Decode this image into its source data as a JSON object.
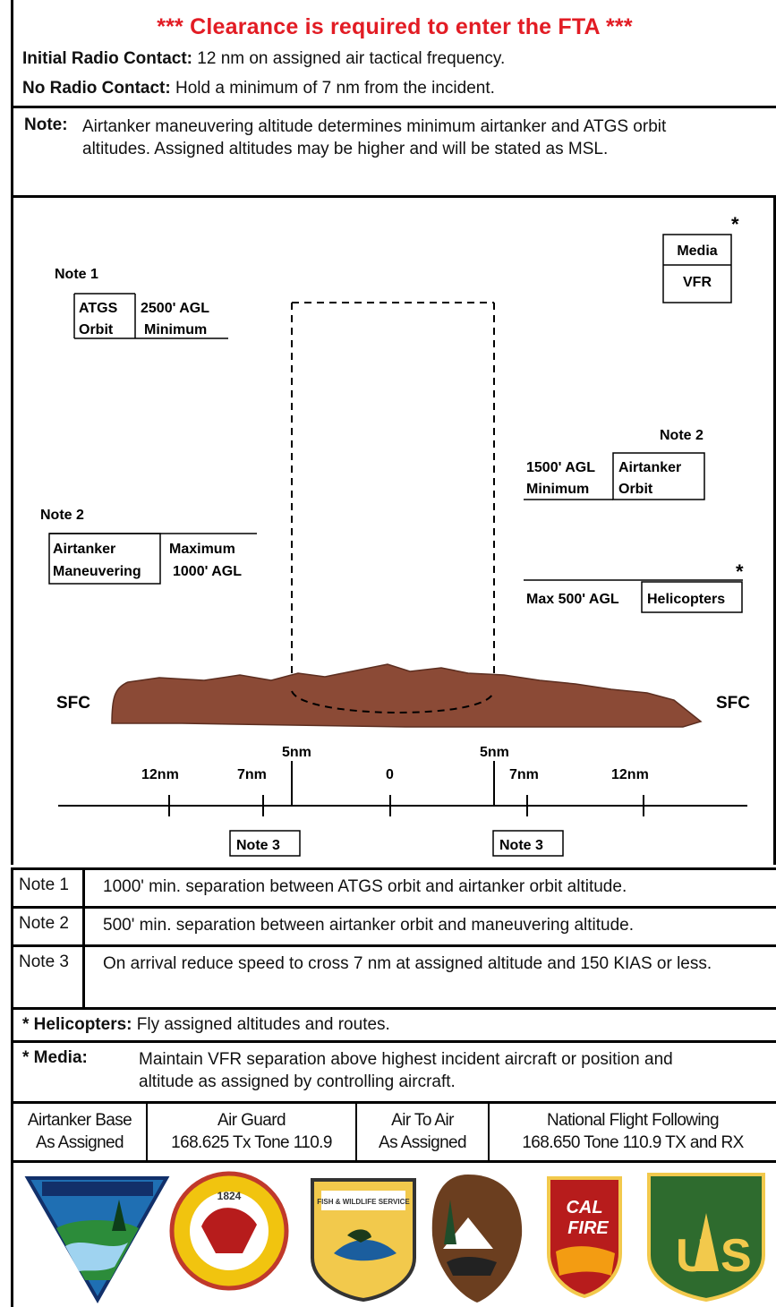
{
  "header": {
    "clearance": "*** Clearance is required to enter the FTA ***",
    "initial_label": "Initial Radio Contact:",
    "initial_text": " 12 nm on assigned air tactical frequency.",
    "noradio_label": "No Radio Contact:",
    "noradio_text": " Hold a minimum of 7 nm from the incident."
  },
  "note": {
    "label": "Note:",
    "text": "Airtanker maneuvering altitude determines minimum airtanker and ATGS orbit altitudes. Assigned altitudes may be higher and will be stated as MSL."
  },
  "diagram": {
    "note1": "Note 1",
    "atgs_a": "ATGS",
    "atgs_b": "Orbit",
    "atgs_alt_a": "2500' AGL",
    "atgs_alt_b": "Minimum",
    "asterisk": "*",
    "media": "Media",
    "vfr": "VFR",
    "note2_right": "Note 2",
    "airtanker_orbit_alt_a": "1500' AGL",
    "airtanker_orbit_alt_b": "Minimum",
    "airtanker_orbit_a": "Airtanker",
    "airtanker_orbit_b": "Orbit",
    "note2_left": "Note 2",
    "maneuver_a": "Airtanker",
    "maneuver_b": "Maneuvering",
    "maneuver_alt_a": "Maximum",
    "maneuver_alt_b": "1000' AGL",
    "heli_alt": "Max 500' AGL",
    "heli": "Helicopters",
    "sfc": "SFC",
    "ticks": {
      "t12l": "12nm",
      "t7l": "7nm",
      "t5l": "5nm",
      "t0": "0",
      "t5r": "5nm",
      "t7r": "7nm",
      "t12r": "12nm"
    },
    "note3": "Note 3"
  },
  "notes": [
    {
      "key": "Note 1",
      "text": "1000' min. separation between ATGS orbit and airtanker orbit altitude."
    },
    {
      "key": "Note 2",
      "text": "500' min. separation between airtanker orbit and maneuvering altitude."
    },
    {
      "key": "Note 3",
      "text": "On arrival reduce speed to cross 7 nm at assigned altitude and 150 KIAS or less."
    }
  ],
  "helicopters": {
    "label": "* Helicopters:",
    "text": " Fly assigned altitudes and routes."
  },
  "media": {
    "label": "* Media:",
    "text": "Maintain VFR separation above highest incident aircraft or position and altitude as assigned by controlling aircraft."
  },
  "frequencies": [
    {
      "a": "Airtanker Base",
      "b": "As Assigned"
    },
    {
      "a": "Air Guard",
      "b": "168.625 Tx Tone 110.9"
    },
    {
      "a": "Air To Air",
      "b": "As Assigned"
    },
    {
      "a": "National Flight Following",
      "b": "168.650 Tone 110.9 TX and RX"
    }
  ],
  "logos": [
    {
      "name": "blm-logo"
    },
    {
      "name": "bia-logo",
      "text": "1824"
    },
    {
      "name": "fws-logo",
      "text": "FISH & WILDLIFE SERVICE"
    },
    {
      "name": "nps-logo"
    },
    {
      "name": "calfire-logo",
      "text_a": "CAL",
      "text_b": "FIRE"
    },
    {
      "name": "usfs-logo",
      "text_a": "U",
      "text_b": "S"
    }
  ],
  "colors": {
    "red": "#e21c24",
    "terrain": "#8b4a36"
  }
}
